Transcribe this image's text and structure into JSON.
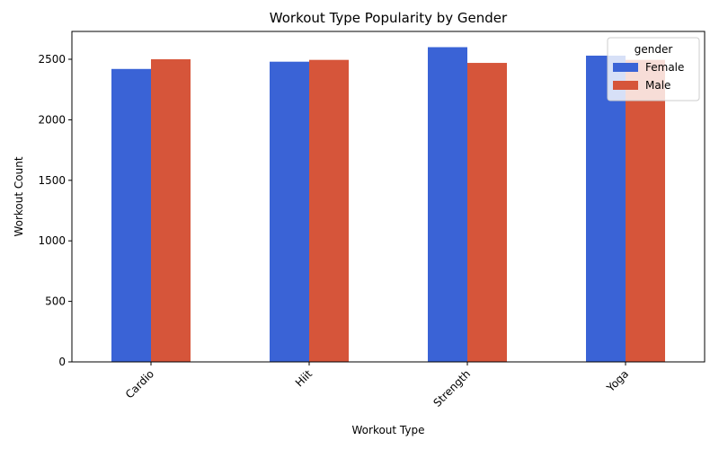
{
  "chart_data": {
    "type": "bar",
    "title": "Workout Type Popularity by Gender",
    "xlabel": "Workout Type",
    "ylabel": "Workout Count",
    "categories": [
      "Cardio",
      "Hiit",
      "Strength",
      "Yoga"
    ],
    "series": [
      {
        "name": "Female",
        "values": [
          2420,
          2480,
          2600,
          2530
        ]
      },
      {
        "name": "Male",
        "values": [
          2500,
          2495,
          2470,
          2495
        ]
      }
    ],
    "ylim": [
      0,
      2730
    ],
    "yticks": [
      0,
      500,
      1000,
      1500,
      2000,
      2500
    ],
    "legend": {
      "title": "gender",
      "placement": "top-right"
    },
    "grid": false,
    "colors": {
      "Female": "#3a63d6",
      "Male": "#d6553a"
    }
  }
}
